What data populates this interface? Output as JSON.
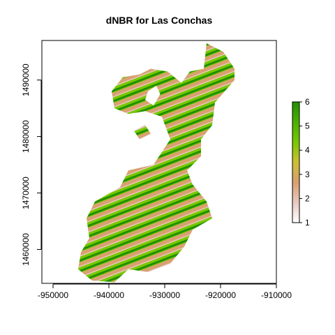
{
  "chart_data": {
    "type": "heatmap",
    "title": "dNBR for Las Conchas",
    "xlabel": "",
    "ylabel": "",
    "xlim": [
      -952000,
      -910000
    ],
    "ylim": [
      1454000,
      1497000
    ],
    "x_ticks": [
      -950000,
      -940000,
      -930000,
      -920000,
      -910000
    ],
    "x_tick_labels": [
      "-950000",
      "-940000",
      "-930000",
      "-920000",
      "-910000"
    ],
    "y_ticks": [
      1460000,
      1470000,
      1480000,
      1490000
    ],
    "y_tick_labels": [
      "1460000",
      "1470000",
      "1480000",
      "1490000"
    ],
    "legend": {
      "placement": "right",
      "range": [
        1,
        6
      ],
      "ticks": [
        1,
        2,
        3,
        4,
        5,
        6
      ],
      "tick_labels": [
        "1",
        "2",
        "3",
        "4",
        "5",
        "6"
      ],
      "colors": [
        "#ffffff",
        "#e9c8c0",
        "#d9a070",
        "#cdbf33",
        "#77c800",
        "#4caf00",
        "#1f9000"
      ]
    },
    "stripe_angle_deg": -21,
    "perimeter_xy": [
      [
        -945500,
        1456500
      ],
      [
        -945000,
        1459500
      ],
      [
        -943500,
        1462000
      ],
      [
        -944000,
        1465500
      ],
      [
        -942500,
        1468500
      ],
      [
        -938000,
        1471000
      ],
      [
        -936500,
        1474000
      ],
      [
        -932000,
        1475000
      ],
      [
        -929000,
        1479500
      ],
      [
        -930500,
        1483500
      ],
      [
        -933500,
        1484500
      ],
      [
        -936500,
        1484000
      ],
      [
        -939000,
        1485000
      ],
      [
        -939500,
        1488000
      ],
      [
        -937500,
        1490500
      ],
      [
        -934500,
        1491000
      ],
      [
        -932500,
        1492000
      ],
      [
        -929500,
        1491500
      ],
      [
        -927000,
        1489500
      ],
      [
        -925500,
        1491500
      ],
      [
        -923000,
        1492000
      ],
      [
        -922500,
        1496500
      ],
      [
        -919500,
        1495000
      ],
      [
        -917500,
        1492000
      ],
      [
        -917500,
        1490000
      ],
      [
        -921000,
        1486000
      ],
      [
        -921500,
        1482000
      ],
      [
        -923500,
        1479500
      ],
      [
        -923500,
        1476500
      ],
      [
        -926000,
        1474000
      ],
      [
        -925000,
        1471500
      ],
      [
        -922500,
        1468500
      ],
      [
        -921500,
        1465500
      ],
      [
        -925000,
        1463500
      ],
      [
        -926500,
        1460500
      ],
      [
        -929000,
        1457500
      ],
      [
        -933000,
        1456000
      ],
      [
        -936500,
        1456500
      ],
      [
        -939000,
        1454200
      ],
      [
        -943000,
        1454500
      ]
    ],
    "holes_xy": [
      [
        [
          -933000,
          1488000
        ],
        [
          -931500,
          1489000
        ],
        [
          -930800,
          1487500
        ],
        [
          -932000,
          1485500
        ],
        [
          -933500,
          1486500
        ]
      ],
      [
        [
          -935500,
          1481000
        ],
        [
          -933500,
          1482000
        ],
        [
          -932500,
          1480500
        ],
        [
          -934500,
          1479500
        ]
      ]
    ]
  }
}
